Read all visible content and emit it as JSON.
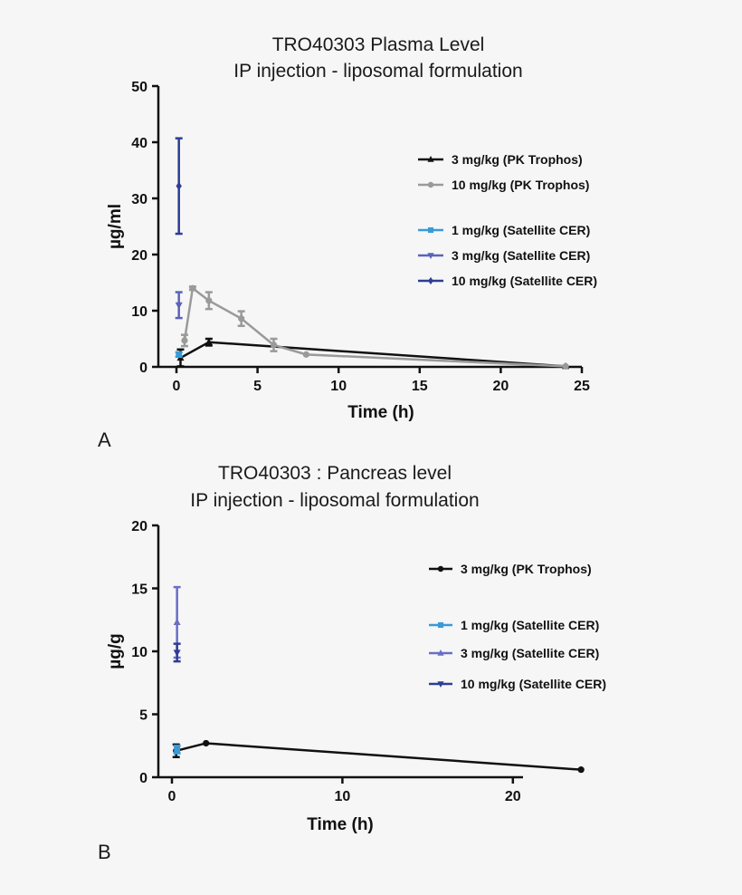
{
  "chart_data": [
    {
      "panel": "A",
      "type": "line",
      "title": [
        "TRO40303 Plasma Level",
        "IP injection - liposomal formulation"
      ],
      "xlabel": "Time (h)",
      "ylabel": "µg/ml",
      "xlim": [
        0,
        25
      ],
      "ylim": [
        0,
        50
      ],
      "xticks": [
        0,
        5,
        10,
        15,
        20,
        25
      ],
      "yticks": [
        0,
        10,
        20,
        30,
        40,
        50
      ],
      "legend_position": "right",
      "series": [
        {
          "name": "3 mg/kg (PK Trophos)",
          "color": "#111111",
          "marker": "triangle-up",
          "line": true,
          "points": [
            {
              "x": 0.25,
              "y": 1.6,
              "err": 1.5
            },
            {
              "x": 2,
              "y": 4.4,
              "err": 0.6
            },
            {
              "x": 24,
              "y": 0.1,
              "err": 0
            }
          ]
        },
        {
          "name": "10 mg/kg (PK Trophos)",
          "color": "#9a9a9a",
          "marker": "circle",
          "line": true,
          "points": [
            {
              "x": 0.5,
              "y": 4.7,
              "err": 1.0
            },
            {
              "x": 1,
              "y": 14.0,
              "err": 0.3
            },
            {
              "x": 2,
              "y": 11.8,
              "err": 1.5
            },
            {
              "x": 4,
              "y": 8.6,
              "err": 1.3
            },
            {
              "x": 6,
              "y": 3.9,
              "err": 1.1
            },
            {
              "x": 8,
              "y": 2.2,
              "err": 0
            },
            {
              "x": 24,
              "y": 0.1,
              "err": 0
            }
          ]
        },
        {
          "name": "1 mg/kg (Satellite CER)",
          "color": "#3a9ad6",
          "marker": "square",
          "line": false,
          "points": [
            {
              "x": 0.15,
              "y": 2.2,
              "err": 0.4
            }
          ]
        },
        {
          "name": "3 mg/kg (Satellite CER)",
          "color": "#5a63b8",
          "marker": "triangle-down",
          "line": false,
          "points": [
            {
              "x": 0.15,
              "y": 11.0,
              "err": 2.3
            }
          ]
        },
        {
          "name": "10 mg/kg (Satellite CER)",
          "color": "#2e3d95",
          "marker": "diamond",
          "line": false,
          "points": [
            {
              "x": 0.15,
              "y": 32.2,
              "err": 8.5
            }
          ]
        }
      ]
    },
    {
      "panel": "B",
      "type": "line",
      "title": [
        "TRO40303 : Pancreas level",
        "IP injection - liposomal formulation"
      ],
      "xlabel": "Time (h)",
      "ylabel": "µg/g",
      "xlim": [
        0,
        25
      ],
      "ylim": [
        0,
        20
      ],
      "xticks": [
        0,
        10,
        20
      ],
      "yticks": [
        0,
        5,
        10,
        15,
        20
      ],
      "legend_position": "right",
      "series": [
        {
          "name": "3 mg/kg (PK Trophos)",
          "color": "#111111",
          "marker": "circle",
          "line": true,
          "points": [
            {
              "x": 0.25,
              "y": 2.1,
              "err": 0.5
            },
            {
              "x": 2,
              "y": 2.7,
              "err": 0
            },
            {
              "x": 24,
              "y": 0.6,
              "err": 0
            }
          ]
        },
        {
          "name": "1 mg/kg (Satellite CER)",
          "color": "#3a9ad6",
          "marker": "square",
          "line": false,
          "points": [
            {
              "x": 0.3,
              "y": 2.2,
              "err": 0.3
            }
          ]
        },
        {
          "name": "3 mg/kg (Satellite CER)",
          "color": "#6a6fc4",
          "marker": "triangle-up",
          "line": false,
          "points": [
            {
              "x": 0.3,
              "y": 12.3,
              "err": 2.8
            }
          ]
        },
        {
          "name": "10 mg/kg (Satellite CER)",
          "color": "#2e3d95",
          "marker": "triangle-down",
          "line": false,
          "points": [
            {
              "x": 0.3,
              "y": 9.9,
              "err": 0.7
            }
          ]
        }
      ]
    }
  ]
}
